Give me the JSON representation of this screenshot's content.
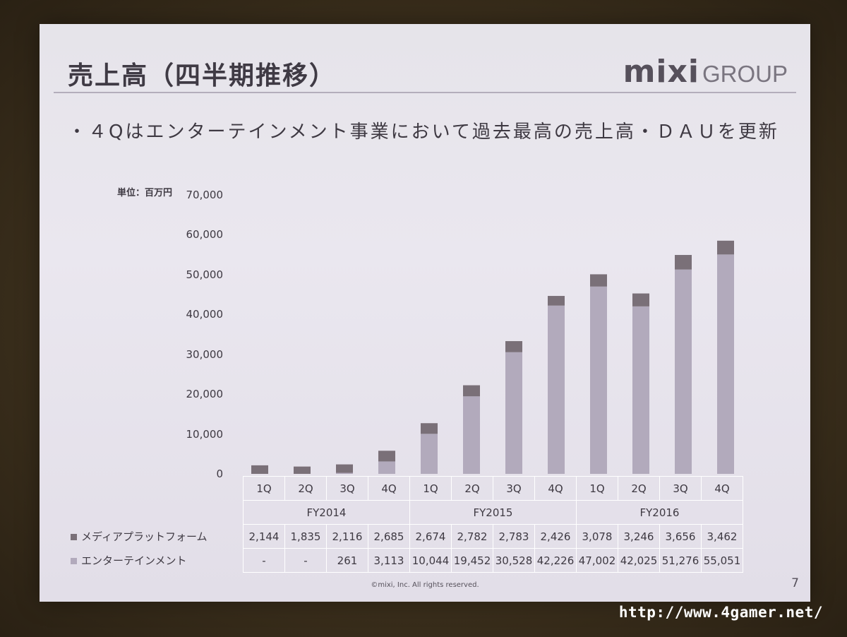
{
  "slide": {
    "title": "売上高（四半期推移）",
    "logo_main": "mixi",
    "logo_sub": "GROUP",
    "bullet": "・４Qはエンターテインメント事業において過去最高の売上高・ＤＡＵを更新",
    "unit": "単位：百万円",
    "footer": "©mixi, Inc. All rights reserved.",
    "page_number": "7",
    "watermark": "http://www.4gamer.net/"
  },
  "colors": {
    "media": "#7a7078",
    "entertainment": "#b2aabc"
  },
  "chart_data": {
    "type": "bar",
    "stacked": true,
    "title": "売上高（四半期推移）",
    "ylabel": "単位：百万円",
    "ylim": [
      0,
      70000
    ],
    "yticks": [
      "0",
      "10,000",
      "20,000",
      "30,000",
      "40,000",
      "50,000",
      "60,000",
      "70,000"
    ],
    "categories": [
      "1Q",
      "2Q",
      "3Q",
      "4Q",
      "1Q",
      "2Q",
      "3Q",
      "4Q",
      "1Q",
      "2Q",
      "3Q",
      "4Q"
    ],
    "groups": [
      {
        "label": "FY2014",
        "span": 4
      },
      {
        "label": "FY2015",
        "span": 4
      },
      {
        "label": "FY2016",
        "span": 4
      }
    ],
    "series": [
      {
        "name": "エンターテインメント",
        "values": [
          0,
          0,
          261,
          3113,
          10044,
          19452,
          30528,
          42226,
          47002,
          42025,
          51276,
          55051
        ],
        "display": [
          "-",
          "-",
          "261",
          "3,113",
          "10,044",
          "19,452",
          "30,528",
          "42,226",
          "47,002",
          "42,025",
          "51,276",
          "55,051"
        ]
      },
      {
        "name": "メディアプラットフォーム",
        "values": [
          2144,
          1835,
          2116,
          2685,
          2674,
          2782,
          2783,
          2426,
          3078,
          3246,
          3656,
          3462
        ],
        "display": [
          "2,144",
          "1,835",
          "2,116",
          "2,685",
          "2,674",
          "2,782",
          "2,783",
          "2,426",
          "3,078",
          "3,246",
          "3,656",
          "3,462"
        ]
      }
    ]
  }
}
